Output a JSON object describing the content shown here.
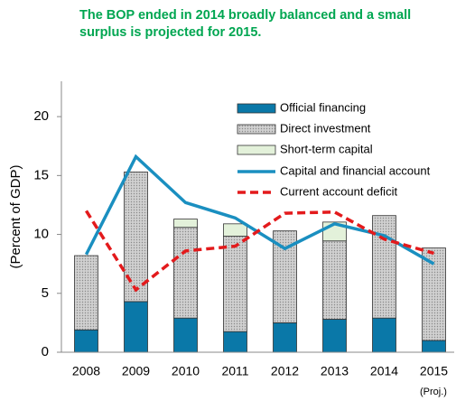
{
  "chart_data": {
    "type": "bar",
    "title": "The BOP ended in 2014 broadly balanced and a small surplus is projected for 2015.",
    "y_label": "(Percent of GDP)",
    "annotation": "(Proj.)",
    "categories": [
      "2008",
      "2009",
      "2010",
      "2011",
      "2012",
      "2013",
      "2014",
      "2015"
    ],
    "series": [
      {
        "name": "Official financing",
        "kind": "bar",
        "color": "#0a78a8",
        "values": [
          1.9,
          4.3,
          2.9,
          1.75,
          2.5,
          2.8,
          2.9,
          1.0
        ]
      },
      {
        "name": "Direct investment",
        "kind": "bar",
        "color": "#c4c4c4",
        "values": [
          6.3,
          11.0,
          7.7,
          8.1,
          7.8,
          6.65,
          8.7,
          7.85
        ]
      },
      {
        "name": "Short-term capital",
        "kind": "bar",
        "color": "#e3f1da",
        "values": [
          0,
          0,
          0.7,
          1.05,
          0,
          1.6,
          0,
          0
        ]
      },
      {
        "name": "Capital and financial account",
        "kind": "line",
        "color": "#1a8fc0",
        "values": [
          8.3,
          16.6,
          12.7,
          11.4,
          8.8,
          10.9,
          9.9,
          7.5
        ]
      },
      {
        "name": "Current account  deficit",
        "kind": "dashed-line",
        "color": "#e31a1c",
        "values": [
          12.0,
          5.3,
          8.6,
          9.0,
          11.8,
          11.9,
          9.6,
          8.4
        ]
      }
    ],
    "ylim": [
      0,
      23
    ],
    "yticks": [
      0,
      5,
      10,
      15,
      20
    ]
  }
}
